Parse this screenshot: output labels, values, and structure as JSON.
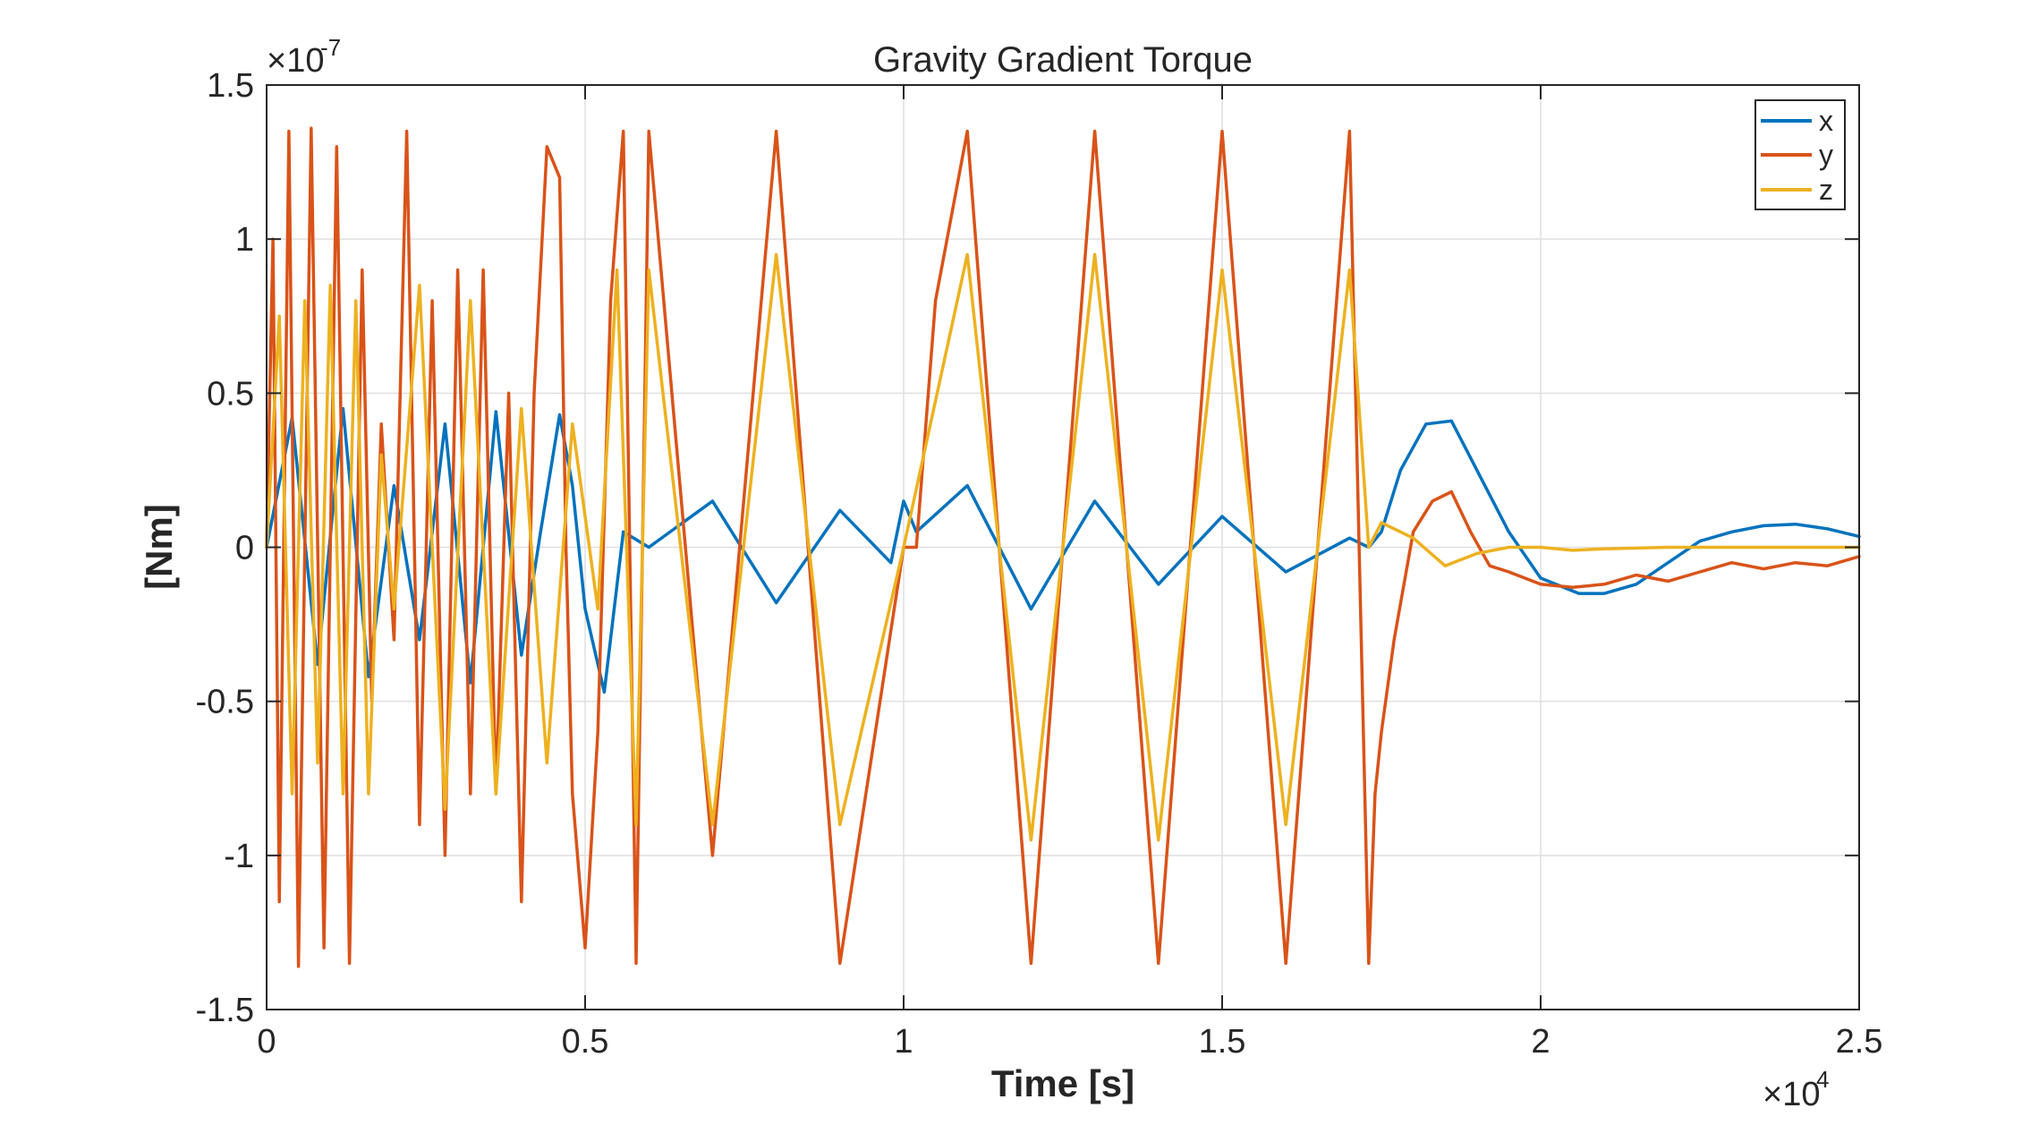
{
  "chart_data": {
    "type": "line",
    "title": "Gravity Gradient Torque",
    "xlabel": "Time [s]",
    "ylabel": "[Nm]",
    "x_exponent_label": "×10",
    "x_exponent_power": "4",
    "y_exponent_label": "×10",
    "y_exponent_power": "-7",
    "xlim": [
      0,
      25000
    ],
    "ylim": [
      -1.5e-07,
      1.5e-07
    ],
    "x_ticks": [
      0,
      5000,
      10000,
      15000,
      20000,
      25000
    ],
    "x_tick_labels": [
      "0",
      "0.5",
      "1",
      "1.5",
      "2",
      "2.5"
    ],
    "y_ticks": [
      -1.5e-07,
      -1e-07,
      -5e-08,
      0,
      5e-08,
      1e-07,
      1.5e-07
    ],
    "y_tick_labels": [
      "-1.5",
      "-1",
      "-0.5",
      "0",
      "0.5",
      "1",
      "1.5"
    ],
    "grid": true,
    "legend_position": "top-right",
    "series": [
      {
        "name": "x",
        "color": "#0072BD",
        "x": [
          0,
          400,
          800,
          1200,
          1600,
          2000,
          2400,
          2800,
          3200,
          3600,
          4000,
          4300,
          4600,
          4800,
          5000,
          5300,
          5600,
          6000,
          7000,
          8000,
          9000,
          9800,
          10000,
          10200,
          11000,
          12000,
          13000,
          14000,
          15000,
          16000,
          17000,
          17300,
          17500,
          17800,
          18200,
          18600,
          19000,
          19500,
          20000,
          20600,
          21000,
          21500,
          22000,
          22500,
          23000,
          23500,
          24000,
          24500,
          25000
        ],
        "values": [
          0,
          4.2e-08,
          -3.8e-08,
          4.5e-08,
          -4.2e-08,
          2e-08,
          -3e-08,
          4e-08,
          -4.4e-08,
          4.4e-08,
          -3.5e-08,
          5e-09,
          4.3e-08,
          2e-08,
          -2e-08,
          -4.7e-08,
          5e-09,
          0.0,
          1.5e-08,
          -1.8e-08,
          1.2e-08,
          -5e-09,
          1.5e-08,
          5e-09,
          2e-08,
          -2e-08,
          1.5e-08,
          -1.2e-08,
          1e-08,
          -8e-09,
          3e-09,
          0.0,
          5e-09,
          2.5e-08,
          4e-08,
          4.1e-08,
          2.5e-08,
          5e-09,
          -1e-08,
          -1.5e-08,
          -1.5e-08,
          -1.2e-08,
          -5e-09,
          2e-09,
          5e-09,
          7e-09,
          7.5e-09,
          6e-09,
          3.5e-09
        ]
      },
      {
        "name": "y",
        "color": "#D95319",
        "x": [
          0,
          100,
          200,
          350,
          500,
          700,
          900,
          1100,
          1300,
          1500,
          1650,
          1800,
          2000,
          2200,
          2400,
          2600,
          2800,
          3000,
          3200,
          3400,
          3600,
          3800,
          4000,
          4200,
          4400,
          4500,
          4600,
          4700,
          4800,
          5000,
          5200,
          5400,
          5600,
          5800,
          6000,
          7000,
          8000,
          9000,
          10000,
          10200,
          10500,
          11000,
          12000,
          13000,
          14000,
          15000,
          16000,
          17000,
          17300,
          17400,
          17500,
          17700,
          18000,
          18300,
          18600,
          18900,
          19200,
          19500,
          20000,
          20500,
          21000,
          21500,
          22000,
          22500,
          23000,
          23500,
          24000,
          24500,
          25000
        ],
        "values": [
          0,
          1e-07,
          -1.15e-07,
          1.35e-07,
          -1.36e-07,
          1.36e-07,
          -1.3e-07,
          1.3e-07,
          -1.35e-07,
          9e-08,
          -5e-08,
          4e-08,
          -3e-08,
          1.35e-07,
          -9e-08,
          8e-08,
          -1e-07,
          9e-08,
          -8e-08,
          9e-08,
          -8e-08,
          5e-08,
          -1.15e-07,
          5e-08,
          1.3e-07,
          1.25e-07,
          1.2e-07,
          0.0,
          -8e-08,
          -1.3e-07,
          -6e-08,
          8e-08,
          1.35e-07,
          -1.35e-07,
          1.35e-07,
          -1e-07,
          1.35e-07,
          -1.35e-07,
          0.0,
          0.0,
          8e-08,
          1.35e-07,
          -1.35e-07,
          1.35e-07,
          -1.35e-07,
          1.35e-07,
          -1.35e-07,
          1.35e-07,
          -1.35e-07,
          -8e-08,
          -6e-08,
          -3e-08,
          5e-09,
          1.5e-08,
          1.8e-08,
          5e-09,
          -6e-09,
          -8e-09,
          -1.2e-08,
          -1.3e-08,
          -1.2e-08,
          -9e-09,
          -1.1e-08,
          -8e-09,
          -5e-09,
          -7e-09,
          -5e-09,
          -6e-09,
          -3e-09
        ]
      },
      {
        "name": "z",
        "color": "#EDB120",
        "x": [
          0,
          200,
          400,
          600,
          800,
          1000,
          1200,
          1400,
          1600,
          1800,
          2000,
          2400,
          2800,
          3200,
          3600,
          4000,
          4400,
          4800,
          5200,
          5500,
          5800,
          6000,
          7000,
          8000,
          9000,
          10000,
          11000,
          12000,
          13000,
          14000,
          15000,
          16000,
          17000,
          17300,
          17500,
          18000,
          18500,
          19000,
          19500,
          20000,
          20500,
          21000,
          22000,
          23000,
          24000,
          25000
        ],
        "values": [
          0,
          7.5e-08,
          -8e-08,
          8e-08,
          -7e-08,
          8.5e-08,
          -8e-08,
          8e-08,
          -8e-08,
          3e-08,
          -2e-08,
          8.5e-08,
          -8.5e-08,
          8e-08,
          -8e-08,
          4.5e-08,
          -7e-08,
          4e-08,
          -2e-08,
          9e-08,
          -9e-08,
          9e-08,
          -9e-08,
          9.5e-08,
          -9e-08,
          0.0,
          9.5e-08,
          -9.5e-08,
          9.5e-08,
          -9.5e-08,
          9e-08,
          -9e-08,
          9e-08,
          0.0,
          8e-09,
          3e-09,
          -6e-09,
          -2e-09,
          0.0,
          0.0,
          -1e-09,
          -5e-10,
          0.0,
          0.0,
          0.0,
          0.0
        ]
      }
    ]
  }
}
